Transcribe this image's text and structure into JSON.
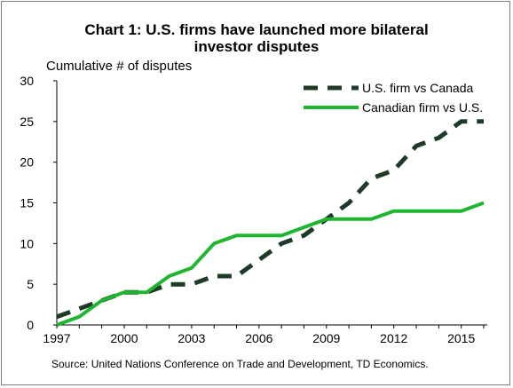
{
  "chart_data": {
    "type": "line",
    "title_lines": [
      "Chart 1: U.S. firms have launched more bilateral",
      "investor disputes"
    ],
    "ylabel": "Cumulative # of disputes",
    "source": "Source: United Nations Conference on Trade and Development, TD Economics.",
    "x": [
      1997,
      1998,
      1999,
      2000,
      2001,
      2002,
      2003,
      2004,
      2005,
      2006,
      2007,
      2008,
      2009,
      2010,
      2011,
      2012,
      2013,
      2014,
      2015,
      2016
    ],
    "xticks": [
      1997,
      2000,
      2003,
      2006,
      2009,
      2012,
      2015
    ],
    "xlim": [
      1997,
      2016
    ],
    "ylim": [
      0,
      30
    ],
    "yticks": [
      0,
      5,
      10,
      15,
      20,
      25,
      30
    ],
    "legend_position": "top-right",
    "series": [
      {
        "name": "U.S. firm vs Canada",
        "style": "dashed",
        "color": "#1d3b26",
        "values": [
          1,
          2,
          3,
          4,
          4,
          5,
          5,
          6,
          6,
          8,
          10,
          11,
          13,
          15,
          18,
          19,
          22,
          23,
          25,
          25
        ]
      },
      {
        "name": "Canadian firm vs U.S.",
        "style": "solid",
        "color": "#1fb531",
        "values": [
          0,
          1,
          3,
          4,
          4,
          6,
          7,
          10,
          11,
          11,
          11,
          12,
          13,
          13,
          13,
          14,
          14,
          14,
          14,
          15
        ]
      }
    ]
  }
}
